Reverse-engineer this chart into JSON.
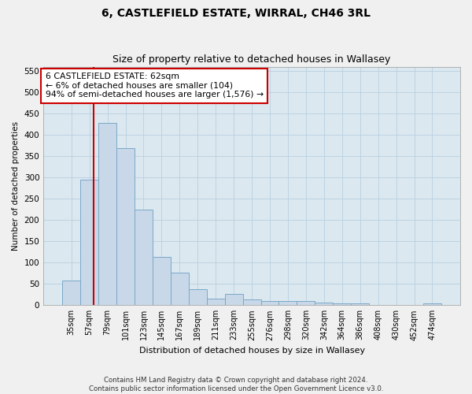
{
  "title": "6, CASTLEFIELD ESTATE, WIRRAL, CH46 3RL",
  "subtitle": "Size of property relative to detached houses in Wallasey",
  "xlabel": "Distribution of detached houses by size in Wallasey",
  "ylabel": "Number of detached properties",
  "footer_line1": "Contains HM Land Registry data © Crown copyright and database right 2024.",
  "footer_line2": "Contains public sector information licensed under the Open Government Licence v3.0.",
  "bar_color": "#c8d8e8",
  "bar_edge_color": "#7aa8c8",
  "grid_color": "#b8cfe0",
  "bg_color": "#dce8f0",
  "fig_color": "#f0f0f0",
  "redline_color": "#cc0000",
  "annotation_text": "6 CASTLEFIELD ESTATE: 62sqm\n← 6% of detached houses are smaller (104)\n94% of semi-detached houses are larger (1,576) →",
  "annotation_box_color": "#ffffff",
  "annotation_border_color": "#cc0000",
  "categories": [
    "35sqm",
    "57sqm",
    "79sqm",
    "101sqm",
    "123sqm",
    "145sqm",
    "167sqm",
    "189sqm",
    "211sqm",
    "233sqm",
    "255sqm",
    "276sqm",
    "298sqm",
    "320sqm",
    "342sqm",
    "364sqm",
    "386sqm",
    "408sqm",
    "430sqm",
    "452sqm",
    "474sqm"
  ],
  "values": [
    57,
    295,
    428,
    368,
    225,
    113,
    76,
    38,
    16,
    26,
    14,
    9,
    9,
    9,
    6,
    5,
    5,
    0,
    0,
    0,
    4
  ],
  "ylim": [
    0,
    560
  ],
  "yticks": [
    0,
    50,
    100,
    150,
    200,
    250,
    300,
    350,
    400,
    450,
    500,
    550
  ]
}
